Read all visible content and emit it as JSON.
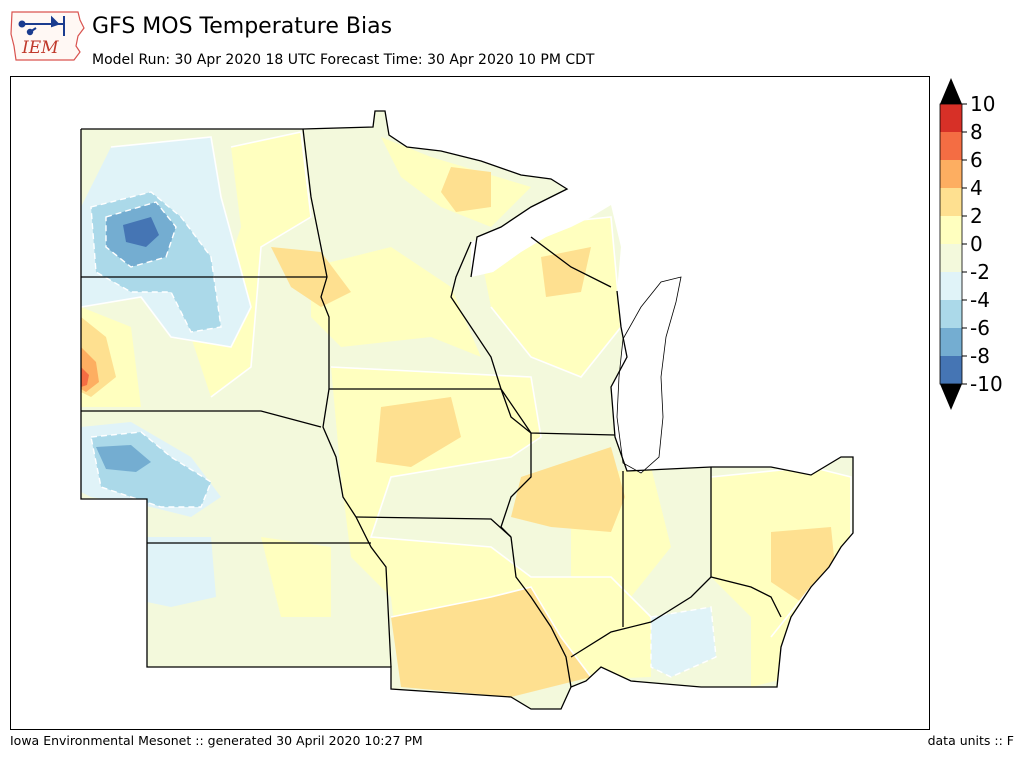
{
  "header": {
    "title": "GFS MOS Temperature Bias",
    "subtitle": "Model Run: 30 Apr 2020 18 UTC Forecast Time: 30 Apr 2020 10 PM CDT"
  },
  "logo": {
    "text": "IEM"
  },
  "footer": {
    "credit": "Iowa Environmental Mesonet :: generated 30 April 2020 10:27 PM",
    "units": "data units :: F"
  },
  "colorbar": {
    "tick_labels": [
      "10",
      "8",
      "6",
      "4",
      "2",
      "0",
      "-2",
      "-4",
      "-6",
      "-8",
      "-10"
    ],
    "bins": [
      {
        "range": "8 to 10",
        "color": "#d73027"
      },
      {
        "range": "6 to 8",
        "color": "#f46d43"
      },
      {
        "range": "4 to 6",
        "color": "#fdae61"
      },
      {
        "range": "2 to 4",
        "color": "#fee090"
      },
      {
        "range": "0 to 2",
        "color": "#ffffbf"
      },
      {
        "range": "-2 to 0",
        "color": "#f3f9dc"
      },
      {
        "range": "-4 to -2",
        "color": "#e0f3f8"
      },
      {
        "range": "-6 to -4",
        "color": "#abd9e9"
      },
      {
        "range": "-8 to -6",
        "color": "#74add1"
      },
      {
        "range": "-10 to -8",
        "color": "#4575b4"
      }
    ],
    "overflow_colors": {
      "above": "#000000",
      "below": "#000000"
    }
  },
  "map": {
    "region": "Upper Midwest and Great Lakes",
    "colors": {
      "lake": "#ffffff",
      "state_border": "#000000",
      "contour_line": "#ffffff"
    }
  }
}
